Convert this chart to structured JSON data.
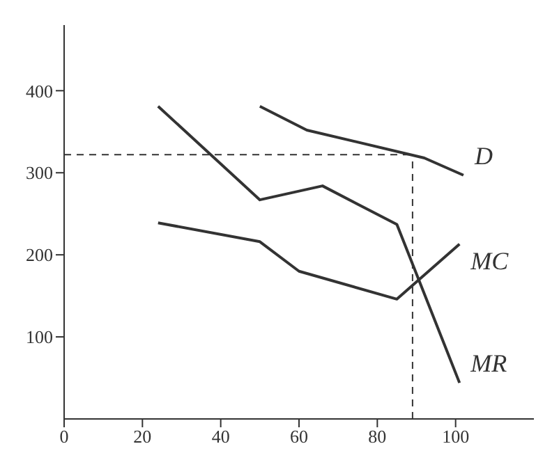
{
  "chart_data": {
    "type": "line",
    "xlim": [
      0,
      120
    ],
    "ylim": [
      0,
      480
    ],
    "xticks": [
      0,
      20,
      40,
      60,
      80,
      100
    ],
    "yticks": [
      100,
      200,
      300,
      400
    ],
    "grid": false,
    "legend": false,
    "marker": "none",
    "line_style": "solid",
    "series": [
      {
        "name": "D",
        "color": "#333333",
        "x": [
          50,
          62,
          92,
          102
        ],
        "values": [
          381,
          352,
          318,
          297
        ]
      },
      {
        "name": "MR",
        "color": "#333333",
        "x": [
          24,
          50,
          66,
          85,
          101
        ],
        "values": [
          381,
          267,
          284,
          237,
          44
        ]
      },
      {
        "name": "MC",
        "color": "#333333",
        "x": [
          24,
          50,
          60,
          85,
          101
        ],
        "values": [
          239,
          216,
          180,
          146,
          213
        ]
      }
    ],
    "ref_lines": [
      {
        "axis": "y",
        "value": 322,
        "line_style": "dashed",
        "color": "#333333"
      },
      {
        "axis": "x",
        "value": 89,
        "line_style": "dashed",
        "color": "#333333"
      }
    ]
  }
}
